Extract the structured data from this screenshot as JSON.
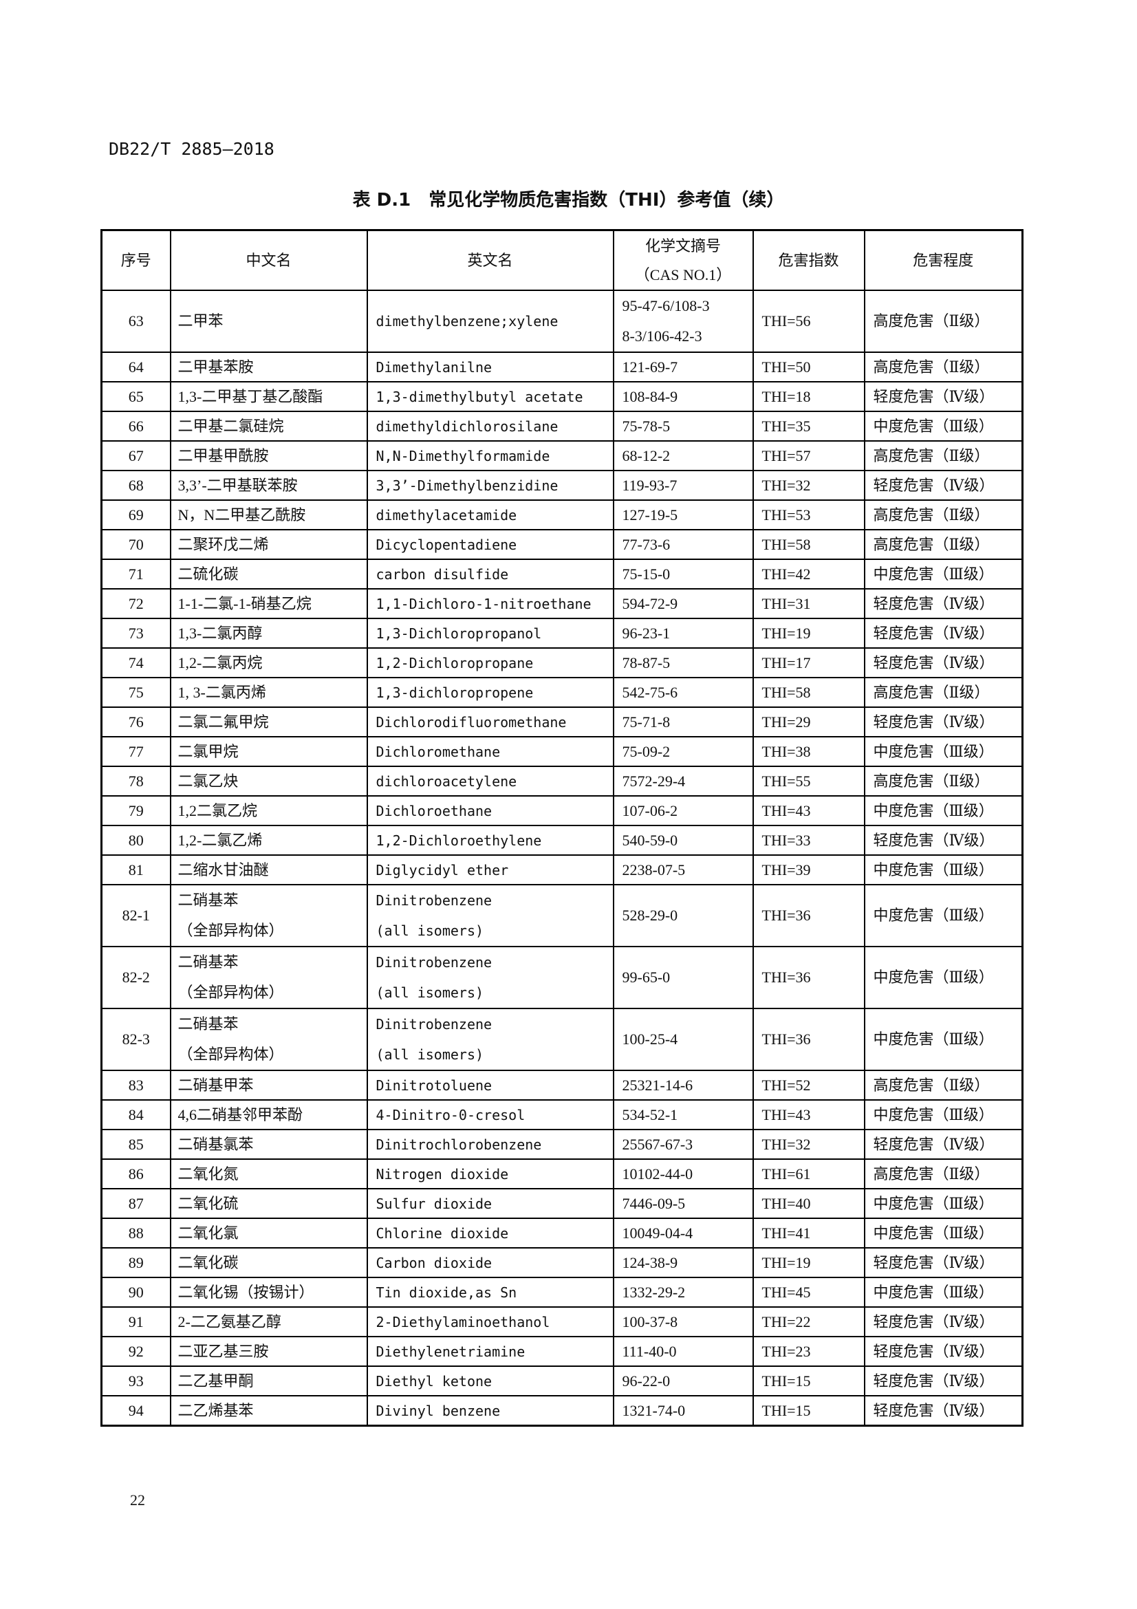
{
  "header": {
    "doc_code": "DB22/T 2885—2018"
  },
  "title": "表 D.1　常见化学物质危害指数（THI）参考值（续）",
  "table": {
    "columns": [
      "序号",
      "中文名",
      "英文名",
      "化学文摘号\n（CAS NO.1）",
      "危害指数",
      "危害程度"
    ],
    "rows": [
      [
        "63",
        "二甲苯",
        "dimethylbenzene;xylene",
        "95-47-6/108-3\n8-3/106-42-3",
        "THI=56",
        "高度危害（Ⅱ级）"
      ],
      [
        "64",
        "二甲基苯胺",
        "Dimethylanilne",
        "121-69-7",
        "THI=50",
        "高度危害（Ⅱ级）"
      ],
      [
        "65",
        "1,3-二甲基丁基乙酸酯",
        "1,3-dimethylbutyl acetate",
        "108-84-9",
        "THI=18",
        "轻度危害（Ⅳ级）"
      ],
      [
        "66",
        "二甲基二氯硅烷",
        "dimethyldichlorosilane",
        "75-78-5",
        "THI=35",
        "中度危害（Ⅲ级）"
      ],
      [
        "67",
        "二甲基甲酰胺",
        "N,N-Dimethylformamide",
        "68-12-2",
        "THI=57",
        "高度危害（Ⅱ级）"
      ],
      [
        "68",
        "3,3’-二甲基联苯胺",
        "3,3’-Dimethylbenzidine",
        "119-93-7",
        "THI=32",
        "轻度危害（Ⅳ级）"
      ],
      [
        "69",
        "N，N二甲基乙酰胺",
        "dimethylacetamide",
        "127-19-5",
        "THI=53",
        "高度危害（Ⅱ级）"
      ],
      [
        "70",
        "二聚环戊二烯",
        "Dicyclopentadiene",
        "77-73-6",
        "THI=58",
        "高度危害（Ⅱ级）"
      ],
      [
        "71",
        "二硫化碳",
        "carbon disulfide",
        "75-15-0",
        "THI=42",
        "中度危害（Ⅲ级）"
      ],
      [
        "72",
        "1-1-二氯-1-硝基乙烷",
        "1,1-Dichloro-1-nitroethane",
        "594-72-9",
        "THI=31",
        "轻度危害（Ⅳ级）"
      ],
      [
        "73",
        "1,3-二氯丙醇",
        "1,3-Dichloropropanol",
        "96-23-1",
        "THI=19",
        "轻度危害（Ⅳ级）"
      ],
      [
        "74",
        "1,2-二氯丙烷",
        "1,2-Dichloropropane",
        "78-87-5",
        "THI=17",
        "轻度危害（Ⅳ级）"
      ],
      [
        "75",
        "1, 3-二氯丙烯",
        "1,3-dichloropropene",
        "542-75-6",
        "THI=58",
        "高度危害（Ⅱ级）"
      ],
      [
        "76",
        "二氯二氟甲烷",
        "Dichlorodifluoromethane",
        "75-71-8",
        "THI=29",
        "轻度危害（Ⅳ级）"
      ],
      [
        "77",
        "二氯甲烷",
        "Dichloromethane",
        "75-09-2",
        "THI=38",
        "中度危害（Ⅲ级）"
      ],
      [
        "78",
        "二氯乙炔",
        "dichloroacetylene",
        "7572-29-4",
        "THI=55",
        "高度危害（Ⅱ级）"
      ],
      [
        "79",
        "1,2二氯乙烷",
        "Dichloroethane",
        "107-06-2",
        "THI=43",
        "中度危害（Ⅲ级）"
      ],
      [
        "80",
        "1,2-二氯乙烯",
        "1,2-Dichloroethylene",
        "540-59-0",
        "THI=33",
        "轻度危害（Ⅳ级）"
      ],
      [
        "81",
        "二缩水甘油醚",
        "Diglycidyl ether",
        "2238-07-5",
        "THI=39",
        "中度危害（Ⅲ级）"
      ],
      [
        "82-1",
        "二硝基苯\n（全部异构体）",
        "Dinitrobenzene\n(all isomers)",
        "528-29-0",
        "THI=36",
        "中度危害（Ⅲ级）"
      ],
      [
        "82-2",
        "二硝基苯\n（全部异构体）",
        "Dinitrobenzene\n(all isomers)",
        "99-65-0",
        "THI=36",
        "中度危害（Ⅲ级）"
      ],
      [
        "82-3",
        "二硝基苯\n（全部异构体）",
        "Dinitrobenzene\n(all isomers)",
        "100-25-4",
        "THI=36",
        "中度危害（Ⅲ级）"
      ],
      [
        "83",
        "二硝基甲苯",
        "Dinitrotoluene",
        "25321-14-6",
        "THI=52",
        "高度危害（Ⅱ级）"
      ],
      [
        "84",
        "4,6二硝基邻甲苯酚",
        "4-Dinitro-0-cresol",
        "534-52-1",
        "THI=43",
        "中度危害（Ⅲ级）"
      ],
      [
        "85",
        "二硝基氯苯",
        "Dinitrochlorobenzene",
        "25567-67-3",
        "THI=32",
        "轻度危害（Ⅳ级）"
      ],
      [
        "86",
        "二氧化氮",
        "Nitrogen dioxide",
        "10102-44-0",
        "THI=61",
        "高度危害（Ⅱ级）"
      ],
      [
        "87",
        "二氧化硫",
        "Sulfur dioxide",
        "7446-09-5",
        "THI=40",
        "中度危害（Ⅲ级）"
      ],
      [
        "88",
        "二氧化氯",
        "Chlorine dioxide",
        "10049-04-4",
        "THI=41",
        "中度危害（Ⅲ级）"
      ],
      [
        "89",
        "二氧化碳",
        "Carbon dioxide",
        "124-38-9",
        "THI=19",
        "轻度危害（Ⅳ级）"
      ],
      [
        "90",
        "二氧化锡（按锡计）",
        "Tin dioxide,as Sn",
        "1332-29-2",
        "THI=45",
        "中度危害（Ⅲ级）"
      ],
      [
        "91",
        "2-二乙氨基乙醇",
        "2-Diethylaminoethanol",
        "100-37-8",
        "THI=22",
        "轻度危害（Ⅳ级）"
      ],
      [
        "92",
        "二亚乙基三胺",
        "Diethylenetriamine",
        "111-40-0",
        "THI=23",
        "轻度危害（Ⅳ级）"
      ],
      [
        "93",
        "二乙基甲酮",
        "Diethyl ketone",
        "96-22-0",
        "THI=15",
        "轻度危害（Ⅳ级）"
      ],
      [
        "94",
        "二乙烯基苯",
        "Divinyl benzene",
        "1321-74-0",
        "THI=15",
        "轻度危害（Ⅳ级）"
      ]
    ]
  },
  "footer": {
    "page_number": "22"
  }
}
